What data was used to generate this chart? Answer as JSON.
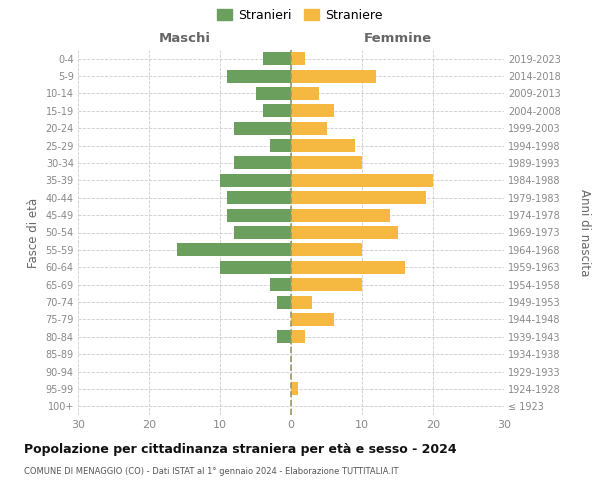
{
  "age_groups": [
    "100+",
    "95-99",
    "90-94",
    "85-89",
    "80-84",
    "75-79",
    "70-74",
    "65-69",
    "60-64",
    "55-59",
    "50-54",
    "45-49",
    "40-44",
    "35-39",
    "30-34",
    "25-29",
    "20-24",
    "15-19",
    "10-14",
    "5-9",
    "0-4"
  ],
  "birth_years": [
    "≤ 1923",
    "1924-1928",
    "1929-1933",
    "1934-1938",
    "1939-1943",
    "1944-1948",
    "1949-1953",
    "1954-1958",
    "1959-1963",
    "1964-1968",
    "1969-1973",
    "1974-1978",
    "1979-1983",
    "1984-1988",
    "1989-1993",
    "1994-1998",
    "1999-2003",
    "2004-2008",
    "2009-2013",
    "2014-2018",
    "2019-2023"
  ],
  "maschi": [
    0,
    0,
    0,
    0,
    2,
    0,
    2,
    3,
    10,
    16,
    8,
    9,
    9,
    10,
    8,
    3,
    8,
    4,
    5,
    9,
    4
  ],
  "femmine": [
    0,
    1,
    0,
    0,
    2,
    6,
    3,
    10,
    16,
    10,
    15,
    14,
    19,
    20,
    10,
    9,
    5,
    6,
    4,
    12,
    2
  ],
  "maschi_color": "#6a9f5e",
  "femmine_color": "#f5b942",
  "title": "Popolazione per cittadinanza straniera per età e sesso - 2024",
  "subtitle": "COMUNE DI MENAGGIO (CO) - Dati ISTAT al 1° gennaio 2024 - Elaborazione TUTTITALIA.IT",
  "xlabel_left": "Maschi",
  "xlabel_right": "Femmine",
  "ylabel_left": "Fasce di età",
  "ylabel_right": "Anni di nascita",
  "legend_maschi": "Stranieri",
  "legend_femmine": "Straniere",
  "xlim": 30,
  "background_color": "#ffffff",
  "grid_color": "#cccccc",
  "dashed_line_color": "#999966",
  "tick_color": "#888888",
  "bar_height": 0.75
}
